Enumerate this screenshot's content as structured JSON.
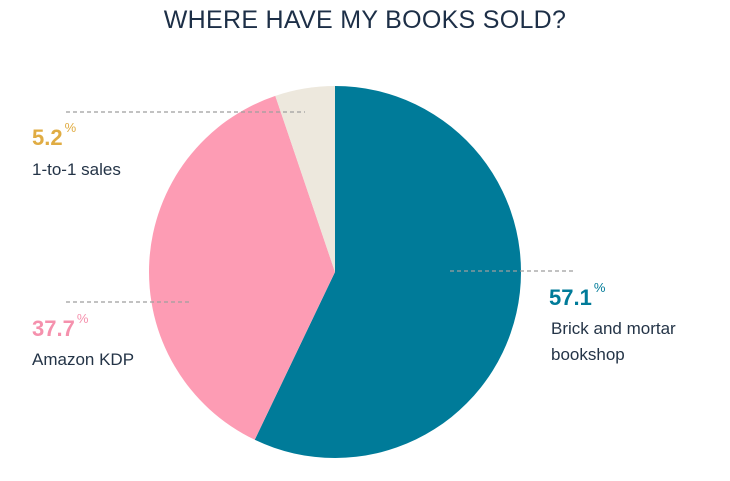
{
  "chart_data": {
    "type": "pie",
    "title": "WHERE HAVE MY BOOKS SOLD?",
    "unit": "%",
    "slices": [
      {
        "label": "Brick and mortar bookshop",
        "value": 57.1,
        "value_text": "57.1",
        "color": "#007b99"
      },
      {
        "label": "Amazon KDP",
        "value": 37.7,
        "value_text": "37.7",
        "color": "#fd9cb4"
      },
      {
        "label": "1-to-1 sales",
        "value": 5.2,
        "value_text": "5.2",
        "color": "#ede8dd"
      }
    ],
    "label_colors": [
      "#007b99",
      "#f591ad",
      "#e0ac43"
    ],
    "leader_line_color": "#9e9e9e"
  }
}
